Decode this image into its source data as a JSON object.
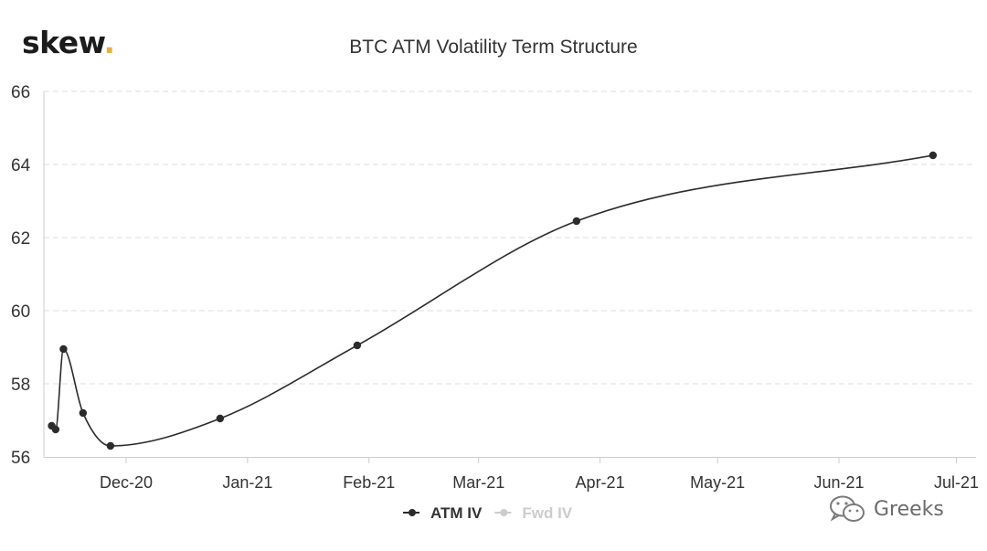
{
  "logo": {
    "text": "skew",
    "dot": "."
  },
  "watermark": {
    "text": "Greeks",
    "icon": "wechat-icon"
  },
  "chart_data": {
    "type": "line",
    "title": "BTC ATM Volatility Term Structure",
    "xlabel": "",
    "ylabel": "",
    "ylim": [
      56,
      66
    ],
    "yticks": [
      56,
      58,
      60,
      62,
      64,
      66
    ],
    "xlim": [
      "2020-11-10",
      "2021-07-06"
    ],
    "xticks": [
      {
        "label": "Dec-20",
        "date": "2020-12-01"
      },
      {
        "label": "Jan-21",
        "date": "2021-01-01"
      },
      {
        "label": "Feb-21",
        "date": "2021-02-01"
      },
      {
        "label": "Mar-21",
        "date": "2021-03-01"
      },
      {
        "label": "Apr-21",
        "date": "2021-04-01"
      },
      {
        "label": "May-21",
        "date": "2021-05-01"
      },
      {
        "label": "Jun-21",
        "date": "2021-06-01"
      },
      {
        "label": "Jul-21",
        "date": "2021-07-01"
      }
    ],
    "grid": "horizontal dashed",
    "legend_position": "bottom",
    "series": [
      {
        "name": "ATM IV",
        "color": "#2b2b2b",
        "points": [
          {
            "x": "2020-11-12",
            "y": 56.85
          },
          {
            "x": "2020-11-13",
            "y": 56.75
          },
          {
            "x": "2020-11-15",
            "y": 58.95
          },
          {
            "x": "2020-11-20",
            "y": 57.2
          },
          {
            "x": "2020-11-27",
            "y": 56.3
          },
          {
            "x": "2020-12-25",
            "y": 57.05
          },
          {
            "x": "2021-01-29",
            "y": 59.05
          },
          {
            "x": "2021-03-26",
            "y": 62.45
          },
          {
            "x": "2021-06-25",
            "y": 64.25
          }
        ]
      },
      {
        "name": "Fwd IV",
        "color": "#cccccc",
        "hidden": true,
        "points": []
      }
    ]
  }
}
